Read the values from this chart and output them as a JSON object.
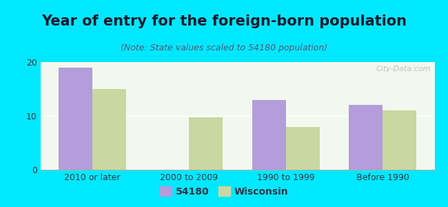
{
  "title": "Year of entry for the foreign-born population",
  "subtitle": "(Note: State values scaled to 54180 population)",
  "categories": [
    "2010 or later",
    "2000 to 2009",
    "1990 to 1999",
    "Before 1990"
  ],
  "values_54180": [
    19.0,
    0,
    13.0,
    12.0
  ],
  "values_wisconsin": [
    15.0,
    9.8,
    8.0,
    11.0
  ],
  "color_54180": "#b39ddb",
  "color_wisconsin": "#c8d8a0",
  "background_outer": "#00e8ff",
  "background_inner": "#f2f8f0",
  "ylim": [
    0,
    20
  ],
  "yticks": [
    0,
    10,
    20
  ],
  "bar_width": 0.35,
  "legend_label_54180": "54180",
  "legend_label_wisconsin": "Wisconsin",
  "title_fontsize": 15,
  "subtitle_fontsize": 9,
  "tick_fontsize": 9,
  "legend_fontsize": 10,
  "title_color": "#1a1a2e",
  "subtitle_color": "#555577",
  "watermark": "City-Data.com"
}
